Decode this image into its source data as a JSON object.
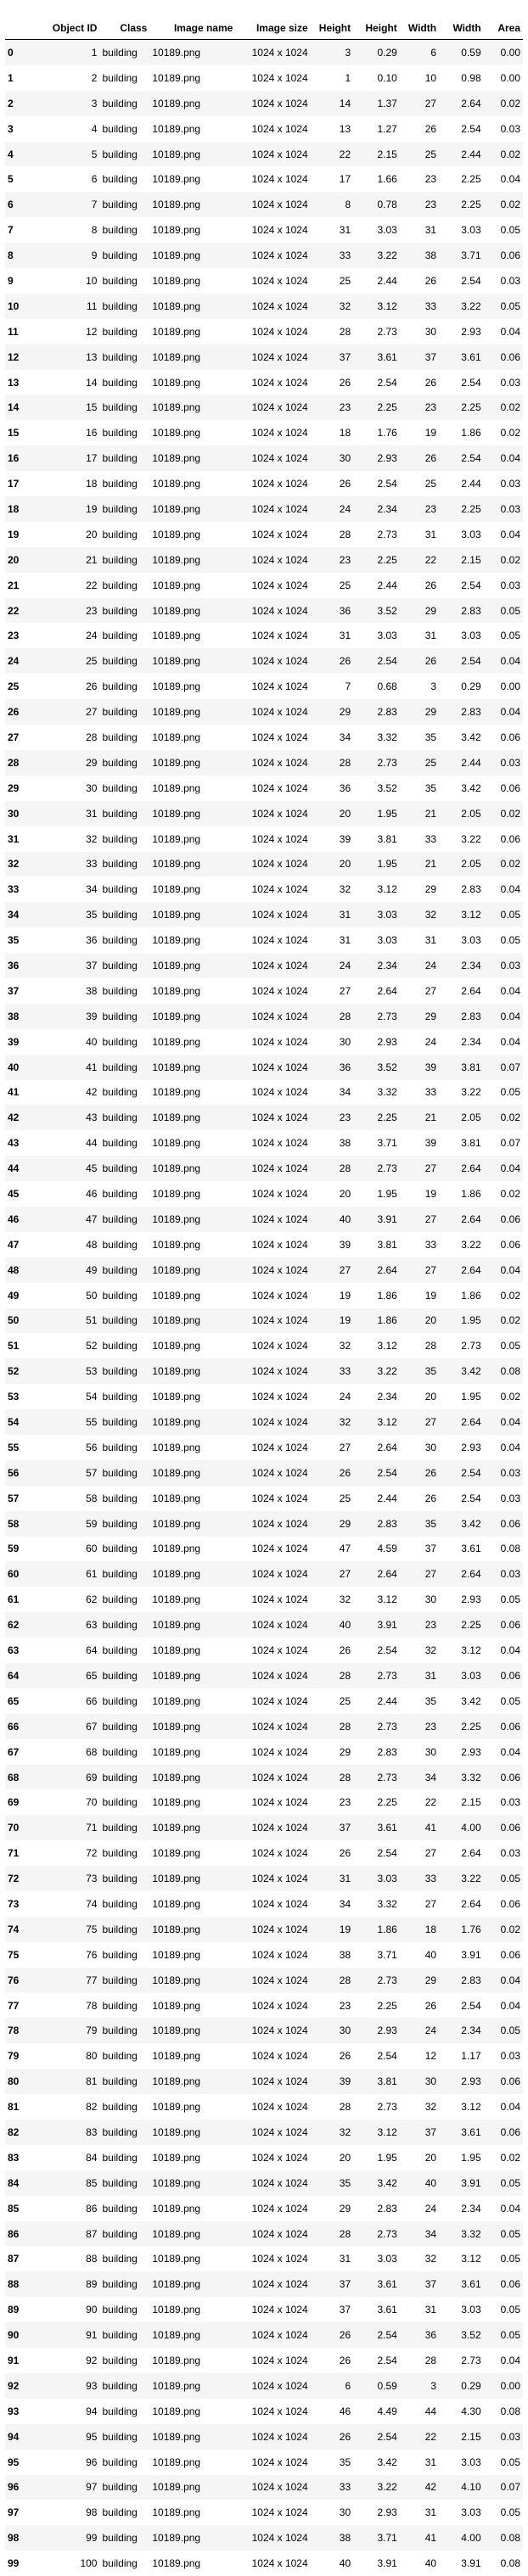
{
  "table": {
    "columns": [
      "",
      "Object ID",
      "Class",
      "Image name",
      "Image size",
      "Height",
      "Height",
      "Width",
      "Width",
      "Area"
    ],
    "rows": [
      [
        "0",
        "1",
        "building",
        "10189.png",
        "1024 x 1024",
        "3",
        "0.29",
        "6",
        "0.59",
        "0.00"
      ],
      [
        "1",
        "2",
        "building",
        "10189.png",
        "1024 x 1024",
        "1",
        "0.10",
        "10",
        "0.98",
        "0.00"
      ],
      [
        "2",
        "3",
        "building",
        "10189.png",
        "1024 x 1024",
        "14",
        "1.37",
        "27",
        "2.64",
        "0.02"
      ],
      [
        "3",
        "4",
        "building",
        "10189.png",
        "1024 x 1024",
        "13",
        "1.27",
        "26",
        "2.54",
        "0.03"
      ],
      [
        "4",
        "5",
        "building",
        "10189.png",
        "1024 x 1024",
        "22",
        "2.15",
        "25",
        "2.44",
        "0.02"
      ],
      [
        "5",
        "6",
        "building",
        "10189.png",
        "1024 x 1024",
        "17",
        "1.66",
        "23",
        "2.25",
        "0.04"
      ],
      [
        "6",
        "7",
        "building",
        "10189.png",
        "1024 x 1024",
        "8",
        "0.78",
        "23",
        "2.25",
        "0.02"
      ],
      [
        "7",
        "8",
        "building",
        "10189.png",
        "1024 x 1024",
        "31",
        "3.03",
        "31",
        "3.03",
        "0.05"
      ],
      [
        "8",
        "9",
        "building",
        "10189.png",
        "1024 x 1024",
        "33",
        "3.22",
        "38",
        "3.71",
        "0.06"
      ],
      [
        "9",
        "10",
        "building",
        "10189.png",
        "1024 x 1024",
        "25",
        "2.44",
        "26",
        "2.54",
        "0.03"
      ],
      [
        "10",
        "11",
        "building",
        "10189.png",
        "1024 x 1024",
        "32",
        "3.12",
        "33",
        "3.22",
        "0.05"
      ],
      [
        "11",
        "12",
        "building",
        "10189.png",
        "1024 x 1024",
        "28",
        "2.73",
        "30",
        "2.93",
        "0.04"
      ],
      [
        "12",
        "13",
        "building",
        "10189.png",
        "1024 x 1024",
        "37",
        "3.61",
        "37",
        "3.61",
        "0.06"
      ],
      [
        "13",
        "14",
        "building",
        "10189.png",
        "1024 x 1024",
        "26",
        "2.54",
        "26",
        "2.54",
        "0.03"
      ],
      [
        "14",
        "15",
        "building",
        "10189.png",
        "1024 x 1024",
        "23",
        "2.25",
        "23",
        "2.25",
        "0.02"
      ],
      [
        "15",
        "16",
        "building",
        "10189.png",
        "1024 x 1024",
        "18",
        "1.76",
        "19",
        "1.86",
        "0.02"
      ],
      [
        "16",
        "17",
        "building",
        "10189.png",
        "1024 x 1024",
        "30",
        "2.93",
        "26",
        "2.54",
        "0.04"
      ],
      [
        "17",
        "18",
        "building",
        "10189.png",
        "1024 x 1024",
        "26",
        "2.54",
        "25",
        "2.44",
        "0.03"
      ],
      [
        "18",
        "19",
        "building",
        "10189.png",
        "1024 x 1024",
        "24",
        "2.34",
        "23",
        "2.25",
        "0.03"
      ],
      [
        "19",
        "20",
        "building",
        "10189.png",
        "1024 x 1024",
        "28",
        "2.73",
        "31",
        "3.03",
        "0.04"
      ],
      [
        "20",
        "21",
        "building",
        "10189.png",
        "1024 x 1024",
        "23",
        "2.25",
        "22",
        "2.15",
        "0.02"
      ],
      [
        "21",
        "22",
        "building",
        "10189.png",
        "1024 x 1024",
        "25",
        "2.44",
        "26",
        "2.54",
        "0.03"
      ],
      [
        "22",
        "23",
        "building",
        "10189.png",
        "1024 x 1024",
        "36",
        "3.52",
        "29",
        "2.83",
        "0.05"
      ],
      [
        "23",
        "24",
        "building",
        "10189.png",
        "1024 x 1024",
        "31",
        "3.03",
        "31",
        "3.03",
        "0.05"
      ],
      [
        "24",
        "25",
        "building",
        "10189.png",
        "1024 x 1024",
        "26",
        "2.54",
        "26",
        "2.54",
        "0.04"
      ],
      [
        "25",
        "26",
        "building",
        "10189.png",
        "1024 x 1024",
        "7",
        "0.68",
        "3",
        "0.29",
        "0.00"
      ],
      [
        "26",
        "27",
        "building",
        "10189.png",
        "1024 x 1024",
        "29",
        "2.83",
        "29",
        "2.83",
        "0.04"
      ],
      [
        "27",
        "28",
        "building",
        "10189.png",
        "1024 x 1024",
        "34",
        "3.32",
        "35",
        "3.42",
        "0.06"
      ],
      [
        "28",
        "29",
        "building",
        "10189.png",
        "1024 x 1024",
        "28",
        "2.73",
        "25",
        "2.44",
        "0.03"
      ],
      [
        "29",
        "30",
        "building",
        "10189.png",
        "1024 x 1024",
        "36",
        "3.52",
        "35",
        "3.42",
        "0.06"
      ],
      [
        "30",
        "31",
        "building",
        "10189.png",
        "1024 x 1024",
        "20",
        "1.95",
        "21",
        "2.05",
        "0.02"
      ],
      [
        "31",
        "32",
        "building",
        "10189.png",
        "1024 x 1024",
        "39",
        "3.81",
        "33",
        "3.22",
        "0.06"
      ],
      [
        "32",
        "33",
        "building",
        "10189.png",
        "1024 x 1024",
        "20",
        "1.95",
        "21",
        "2.05",
        "0.02"
      ],
      [
        "33",
        "34",
        "building",
        "10189.png",
        "1024 x 1024",
        "32",
        "3.12",
        "29",
        "2.83",
        "0.04"
      ],
      [
        "34",
        "35",
        "building",
        "10189.png",
        "1024 x 1024",
        "31",
        "3.03",
        "32",
        "3.12",
        "0.05"
      ],
      [
        "35",
        "36",
        "building",
        "10189.png",
        "1024 x 1024",
        "31",
        "3.03",
        "31",
        "3.03",
        "0.05"
      ],
      [
        "36",
        "37",
        "building",
        "10189.png",
        "1024 x 1024",
        "24",
        "2.34",
        "24",
        "2.34",
        "0.03"
      ],
      [
        "37",
        "38",
        "building",
        "10189.png",
        "1024 x 1024",
        "27",
        "2.64",
        "27",
        "2.64",
        "0.04"
      ],
      [
        "38",
        "39",
        "building",
        "10189.png",
        "1024 x 1024",
        "28",
        "2.73",
        "29",
        "2.83",
        "0.04"
      ],
      [
        "39",
        "40",
        "building",
        "10189.png",
        "1024 x 1024",
        "30",
        "2.93",
        "24",
        "2.34",
        "0.04"
      ],
      [
        "40",
        "41",
        "building",
        "10189.png",
        "1024 x 1024",
        "36",
        "3.52",
        "39",
        "3.81",
        "0.07"
      ],
      [
        "41",
        "42",
        "building",
        "10189.png",
        "1024 x 1024",
        "34",
        "3.32",
        "33",
        "3.22",
        "0.05"
      ],
      [
        "42",
        "43",
        "building",
        "10189.png",
        "1024 x 1024",
        "23",
        "2.25",
        "21",
        "2.05",
        "0.02"
      ],
      [
        "43",
        "44",
        "building",
        "10189.png",
        "1024 x 1024",
        "38",
        "3.71",
        "39",
        "3.81",
        "0.07"
      ],
      [
        "44",
        "45",
        "building",
        "10189.png",
        "1024 x 1024",
        "28",
        "2.73",
        "27",
        "2.64",
        "0.04"
      ],
      [
        "45",
        "46",
        "building",
        "10189.png",
        "1024 x 1024",
        "20",
        "1.95",
        "19",
        "1.86",
        "0.02"
      ],
      [
        "46",
        "47",
        "building",
        "10189.png",
        "1024 x 1024",
        "40",
        "3.91",
        "27",
        "2.64",
        "0.06"
      ],
      [
        "47",
        "48",
        "building",
        "10189.png",
        "1024 x 1024",
        "39",
        "3.81",
        "33",
        "3.22",
        "0.06"
      ],
      [
        "48",
        "49",
        "building",
        "10189.png",
        "1024 x 1024",
        "27",
        "2.64",
        "27",
        "2.64",
        "0.04"
      ],
      [
        "49",
        "50",
        "building",
        "10189.png",
        "1024 x 1024",
        "19",
        "1.86",
        "19",
        "1.86",
        "0.02"
      ],
      [
        "50",
        "51",
        "building",
        "10189.png",
        "1024 x 1024",
        "19",
        "1.86",
        "20",
        "1.95",
        "0.02"
      ],
      [
        "51",
        "52",
        "building",
        "10189.png",
        "1024 x 1024",
        "32",
        "3.12",
        "28",
        "2.73",
        "0.05"
      ],
      [
        "52",
        "53",
        "building",
        "10189.png",
        "1024 x 1024",
        "33",
        "3.22",
        "35",
        "3.42",
        "0.08"
      ],
      [
        "53",
        "54",
        "building",
        "10189.png",
        "1024 x 1024",
        "24",
        "2.34",
        "20",
        "1.95",
        "0.02"
      ],
      [
        "54",
        "55",
        "building",
        "10189.png",
        "1024 x 1024",
        "32",
        "3.12",
        "27",
        "2.64",
        "0.04"
      ],
      [
        "55",
        "56",
        "building",
        "10189.png",
        "1024 x 1024",
        "27",
        "2.64",
        "30",
        "2.93",
        "0.04"
      ],
      [
        "56",
        "57",
        "building",
        "10189.png",
        "1024 x 1024",
        "26",
        "2.54",
        "26",
        "2.54",
        "0.03"
      ],
      [
        "57",
        "58",
        "building",
        "10189.png",
        "1024 x 1024",
        "25",
        "2.44",
        "26",
        "2.54",
        "0.03"
      ],
      [
        "58",
        "59",
        "building",
        "10189.png",
        "1024 x 1024",
        "29",
        "2.83",
        "35",
        "3.42",
        "0.06"
      ],
      [
        "59",
        "60",
        "building",
        "10189.png",
        "1024 x 1024",
        "47",
        "4.59",
        "37",
        "3.61",
        "0.08"
      ],
      [
        "60",
        "61",
        "building",
        "10189.png",
        "1024 x 1024",
        "27",
        "2.64",
        "27",
        "2.64",
        "0.03"
      ],
      [
        "61",
        "62",
        "building",
        "10189.png",
        "1024 x 1024",
        "32",
        "3.12",
        "30",
        "2.93",
        "0.05"
      ],
      [
        "62",
        "63",
        "building",
        "10189.png",
        "1024 x 1024",
        "40",
        "3.91",
        "23",
        "2.25",
        "0.06"
      ],
      [
        "63",
        "64",
        "building",
        "10189.png",
        "1024 x 1024",
        "26",
        "2.54",
        "32",
        "3.12",
        "0.04"
      ],
      [
        "64",
        "65",
        "building",
        "10189.png",
        "1024 x 1024",
        "28",
        "2.73",
        "31",
        "3.03",
        "0.06"
      ],
      [
        "65",
        "66",
        "building",
        "10189.png",
        "1024 x 1024",
        "25",
        "2.44",
        "35",
        "3.42",
        "0.05"
      ],
      [
        "66",
        "67",
        "building",
        "10189.png",
        "1024 x 1024",
        "28",
        "2.73",
        "23",
        "2.25",
        "0.06"
      ],
      [
        "67",
        "68",
        "building",
        "10189.png",
        "1024 x 1024",
        "29",
        "2.83",
        "30",
        "2.93",
        "0.04"
      ],
      [
        "68",
        "69",
        "building",
        "10189.png",
        "1024 x 1024",
        "28",
        "2.73",
        "34",
        "3.32",
        "0.06"
      ],
      [
        "69",
        "70",
        "building",
        "10189.png",
        "1024 x 1024",
        "23",
        "2.25",
        "22",
        "2.15",
        "0.03"
      ],
      [
        "70",
        "71",
        "building",
        "10189.png",
        "1024 x 1024",
        "37",
        "3.61",
        "41",
        "4.00",
        "0.06"
      ],
      [
        "71",
        "72",
        "building",
        "10189.png",
        "1024 x 1024",
        "26",
        "2.54",
        "27",
        "2.64",
        "0.03"
      ],
      [
        "72",
        "73",
        "building",
        "10189.png",
        "1024 x 1024",
        "31",
        "3.03",
        "33",
        "3.22",
        "0.05"
      ],
      [
        "73",
        "74",
        "building",
        "10189.png",
        "1024 x 1024",
        "34",
        "3.32",
        "27",
        "2.64",
        "0.06"
      ],
      [
        "74",
        "75",
        "building",
        "10189.png",
        "1024 x 1024",
        "19",
        "1.86",
        "18",
        "1.76",
        "0.02"
      ],
      [
        "75",
        "76",
        "building",
        "10189.png",
        "1024 x 1024",
        "38",
        "3.71",
        "40",
        "3.91",
        "0.06"
      ],
      [
        "76",
        "77",
        "building",
        "10189.png",
        "1024 x 1024",
        "28",
        "2.73",
        "29",
        "2.83",
        "0.04"
      ],
      [
        "77",
        "78",
        "building",
        "10189.png",
        "1024 x 1024",
        "23",
        "2.25",
        "26",
        "2.54",
        "0.04"
      ],
      [
        "78",
        "79",
        "building",
        "10189.png",
        "1024 x 1024",
        "30",
        "2.93",
        "24",
        "2.34",
        "0.05"
      ],
      [
        "79",
        "80",
        "building",
        "10189.png",
        "1024 x 1024",
        "26",
        "2.54",
        "12",
        "1.17",
        "0.03"
      ],
      [
        "80",
        "81",
        "building",
        "10189.png",
        "1024 x 1024",
        "39",
        "3.81",
        "30",
        "2.93",
        "0.06"
      ],
      [
        "81",
        "82",
        "building",
        "10189.png",
        "1024 x 1024",
        "28",
        "2.73",
        "32",
        "3.12",
        "0.04"
      ],
      [
        "82",
        "83",
        "building",
        "10189.png",
        "1024 x 1024",
        "32",
        "3.12",
        "37",
        "3.61",
        "0.06"
      ],
      [
        "83",
        "84",
        "building",
        "10189.png",
        "1024 x 1024",
        "20",
        "1.95",
        "20",
        "1.95",
        "0.02"
      ],
      [
        "84",
        "85",
        "building",
        "10189.png",
        "1024 x 1024",
        "35",
        "3.42",
        "40",
        "3.91",
        "0.05"
      ],
      [
        "85",
        "86",
        "building",
        "10189.png",
        "1024 x 1024",
        "29",
        "2.83",
        "24",
        "2.34",
        "0.04"
      ],
      [
        "86",
        "87",
        "building",
        "10189.png",
        "1024 x 1024",
        "28",
        "2.73",
        "34",
        "3.32",
        "0.05"
      ],
      [
        "87",
        "88",
        "building",
        "10189.png",
        "1024 x 1024",
        "31",
        "3.03",
        "32",
        "3.12",
        "0.05"
      ],
      [
        "88",
        "89",
        "building",
        "10189.png",
        "1024 x 1024",
        "37",
        "3.61",
        "37",
        "3.61",
        "0.06"
      ],
      [
        "89",
        "90",
        "building",
        "10189.png",
        "1024 x 1024",
        "37",
        "3.61",
        "31",
        "3.03",
        "0.05"
      ],
      [
        "90",
        "91",
        "building",
        "10189.png",
        "1024 x 1024",
        "26",
        "2.54",
        "36",
        "3.52",
        "0.05"
      ],
      [
        "91",
        "92",
        "building",
        "10189.png",
        "1024 x 1024",
        "26",
        "2.54",
        "28",
        "2.73",
        "0.04"
      ],
      [
        "92",
        "93",
        "building",
        "10189.png",
        "1024 x 1024",
        "6",
        "0.59",
        "3",
        "0.29",
        "0.00"
      ],
      [
        "93",
        "94",
        "building",
        "10189.png",
        "1024 x 1024",
        "46",
        "4.49",
        "44",
        "4.30",
        "0.08"
      ],
      [
        "94",
        "95",
        "building",
        "10189.png",
        "1024 x 1024",
        "26",
        "2.54",
        "22",
        "2.15",
        "0.03"
      ],
      [
        "95",
        "96",
        "building",
        "10189.png",
        "1024 x 1024",
        "35",
        "3.42",
        "31",
        "3.03",
        "0.05"
      ],
      [
        "96",
        "97",
        "building",
        "10189.png",
        "1024 x 1024",
        "33",
        "3.22",
        "42",
        "4.10",
        "0.07"
      ],
      [
        "97",
        "98",
        "building",
        "10189.png",
        "1024 x 1024",
        "30",
        "2.93",
        "31",
        "3.03",
        "0.05"
      ],
      [
        "98",
        "99",
        "building",
        "10189.png",
        "1024 x 1024",
        "38",
        "3.71",
        "41",
        "4.00",
        "0.08"
      ],
      [
        "99",
        "100",
        "building",
        "10189.png",
        "1024 x 1024",
        "40",
        "3.91",
        "40",
        "3.91",
        "0.08"
      ]
    ]
  }
}
